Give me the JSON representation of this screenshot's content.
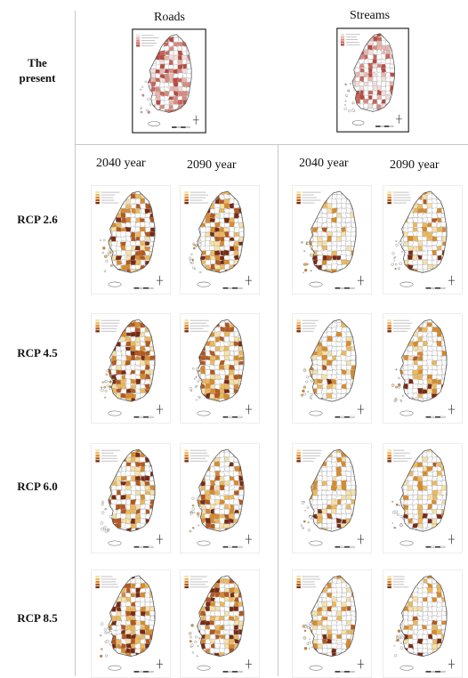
{
  "header": {
    "present_label": "The present",
    "roads_label": "Roads",
    "streams_label": "Streams"
  },
  "columns": {
    "roads_2040": "2040 year",
    "roads_2090": "2090 year",
    "streams_2040": "2040 year",
    "streams_2090": "2090 year"
  },
  "rows": [
    {
      "label": "RCP 2.6"
    },
    {
      "label": "RCP 4.5"
    },
    {
      "label": "RCP 6.0"
    },
    {
      "label": "RCP 8.5"
    }
  ],
  "palette": {
    "present": [
      "#f3dedb",
      "#e8b5ad",
      "#d98a80",
      "#c96358",
      "#b84a40"
    ],
    "scenario": [
      "#f6e1a8",
      "#eeb85a",
      "#d98a2a",
      "#b5581c",
      "#7a2a12"
    ],
    "outline": "#777777",
    "frame": "#222222",
    "divider": "#c8c8c8"
  }
}
